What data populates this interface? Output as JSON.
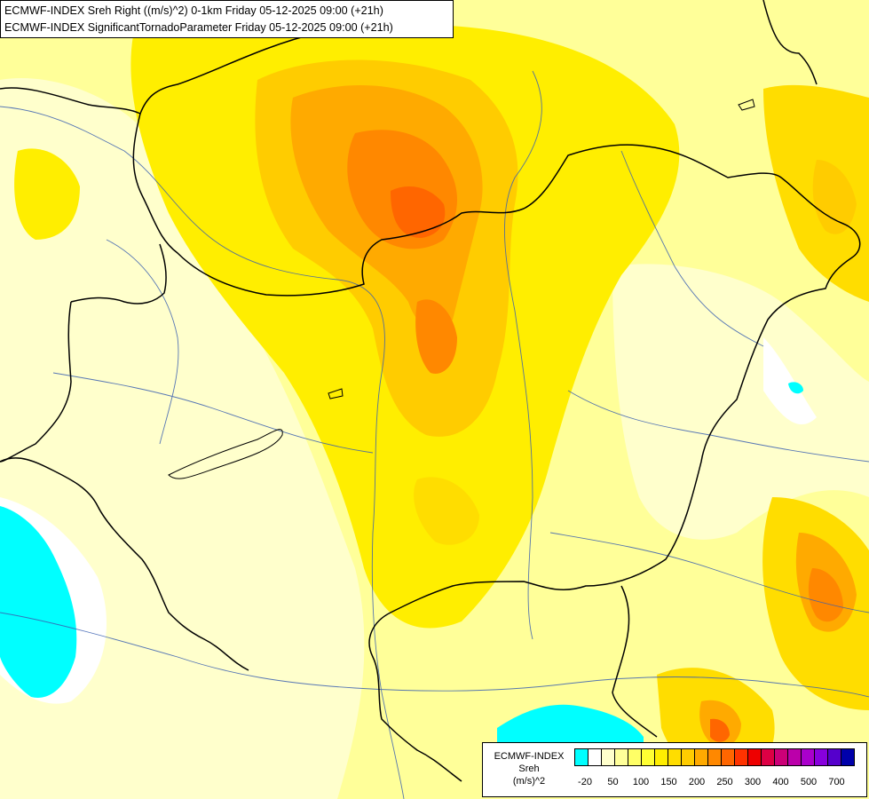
{
  "header": {
    "line1": "ECMWF-INDEX Sreh Right ((m/s)^2) 0-1km Friday 05-12-2025 09:00 (+21h)",
    "line2": "ECMWF-INDEX SignificantTornadoParameter Friday 05-12-2025 09:00 (+21h)"
  },
  "legend": {
    "title_line1": "ECMWF-INDEX",
    "title_line2": "Sreh",
    "title_line3": "(m/s)^2",
    "colors": [
      "#00ffff",
      "#ffffff",
      "#ffffcc",
      "#ffff99",
      "#ffff66",
      "#ffff33",
      "#ffee00",
      "#ffdd00",
      "#ffcc00",
      "#ffaa00",
      "#ff8800",
      "#ff6600",
      "#ff3300",
      "#ee0000",
      "#dd0044",
      "#cc0077",
      "#bb00aa",
      "#aa00cc",
      "#8800dd",
      "#5500cc",
      "#0000aa"
    ],
    "ticks": [
      "-20",
      "50",
      "100",
      "150",
      "200",
      "250",
      "300",
      "400",
      "500",
      "700"
    ]
  }
}
